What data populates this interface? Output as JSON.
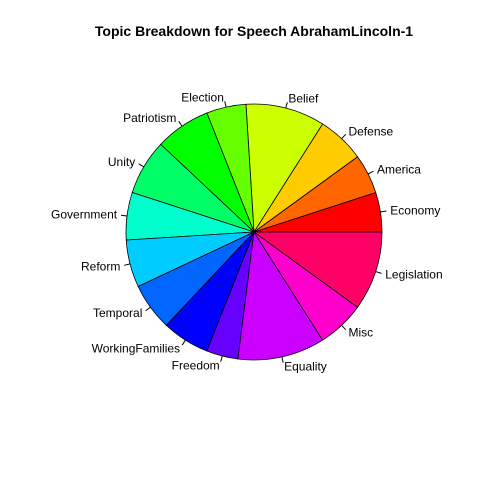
{
  "chart_data": {
    "type": "pie",
    "title": "Topic Breakdown for Speech AbrahamLincoln-1",
    "direction": "counterclockwise",
    "start": "3 o'clock",
    "slices": [
      {
        "label": "Economy",
        "value": 5.0,
        "color": "#ff0000"
      },
      {
        "label": "America",
        "value": 5.0,
        "color": "#ff6600"
      },
      {
        "label": "Defense",
        "value": 6.0,
        "color": "#ffcc00"
      },
      {
        "label": "Belief",
        "value": 10.0,
        "color": "#ccff00"
      },
      {
        "label": "Election",
        "value": 5.0,
        "color": "#66ff00"
      },
      {
        "label": "Patriotism",
        "value": 7.0,
        "color": "#00ff00"
      },
      {
        "label": "Unity",
        "value": 7.0,
        "color": "#00ff66"
      },
      {
        "label": "Government",
        "value": 6.0,
        "color": "#00ffcc"
      },
      {
        "label": "Reform",
        "value": 6.0,
        "color": "#00ccff"
      },
      {
        "label": "Temporal",
        "value": 6.0,
        "color": "#0066ff"
      },
      {
        "label": "WorkingFamilies",
        "value": 6.0,
        "color": "#0000ff"
      },
      {
        "label": "Freedom",
        "value": 4.0,
        "color": "#6600ff"
      },
      {
        "label": "Equality",
        "value": 11.0,
        "color": "#cc00ff"
      },
      {
        "label": "Misc",
        "value": 6.0,
        "color": "#ff00cc"
      },
      {
        "label": "Legislation",
        "value": 10.0,
        "color": "#ff0066"
      }
    ]
  }
}
